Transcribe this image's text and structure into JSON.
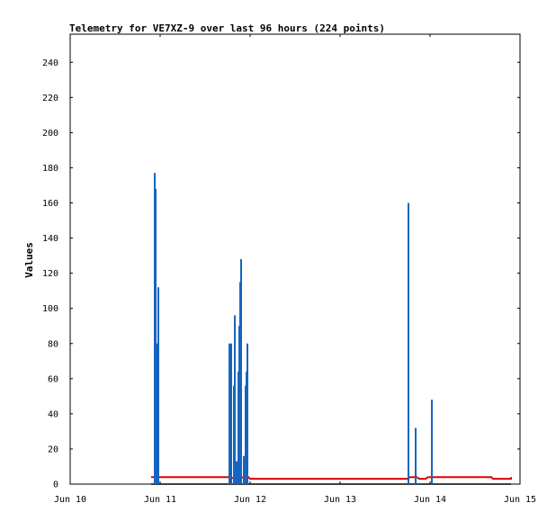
{
  "chart_data": {
    "type": "line",
    "title": "Telemetry for VE7XZ-9 over last 96 hours (224 points)",
    "xlabel": "",
    "ylabel": "Values",
    "xlim": [
      0,
      5
    ],
    "ylim": [
      0,
      256
    ],
    "x_unit": "days from Jun 10 00:00",
    "x_tick_labels": [
      "Jun 10",
      "Jun 11",
      "Jun 12",
      "Jun 13",
      "Jun 14",
      "Jun 15"
    ],
    "y_ticks": [
      0,
      20,
      40,
      60,
      80,
      100,
      120,
      140,
      160,
      180,
      200,
      220,
      240
    ],
    "grid": false,
    "colors": {
      "blue_series": "#1565c0",
      "red_series": "#dd0000",
      "black_series": "#000000",
      "frame": "#000000"
    },
    "series": [
      {
        "color_key": "blue_series",
        "style": "spikes",
        "points": [
          [
            0.94,
            177
          ],
          [
            0.95,
            168
          ],
          [
            0.96,
            80
          ],
          [
            0.98,
            112
          ],
          [
            1.77,
            80
          ],
          [
            1.79,
            80
          ],
          [
            1.82,
            56
          ],
          [
            1.83,
            96
          ],
          [
            1.85,
            13
          ],
          [
            1.87,
            64
          ],
          [
            1.88,
            90
          ],
          [
            1.89,
            115
          ],
          [
            1.9,
            128
          ],
          [
            1.93,
            16
          ],
          [
            1.95,
            56
          ],
          [
            1.96,
            64
          ],
          [
            1.97,
            80
          ],
          [
            3.76,
            160
          ],
          [
            3.84,
            32
          ],
          [
            4.02,
            48
          ]
        ]
      },
      {
        "color_key": "red_series",
        "style": "line",
        "points": [
          [
            0.9,
            4
          ],
          [
            1.78,
            4
          ],
          [
            1.8,
            3.5
          ],
          [
            1.98,
            4
          ],
          [
            2.0,
            3
          ],
          [
            3.75,
            3
          ],
          [
            3.78,
            4
          ],
          [
            3.85,
            4
          ],
          [
            3.88,
            3
          ],
          [
            3.95,
            3
          ],
          [
            3.98,
            4
          ],
          [
            4.68,
            4
          ],
          [
            4.7,
            3
          ],
          [
            4.9,
            3
          ],
          [
            4.9,
            4
          ]
        ]
      },
      {
        "color_key": "black_series",
        "style": "line",
        "points": [
          [
            0.9,
            0
          ],
          [
            4.9,
            0
          ]
        ]
      }
    ]
  }
}
